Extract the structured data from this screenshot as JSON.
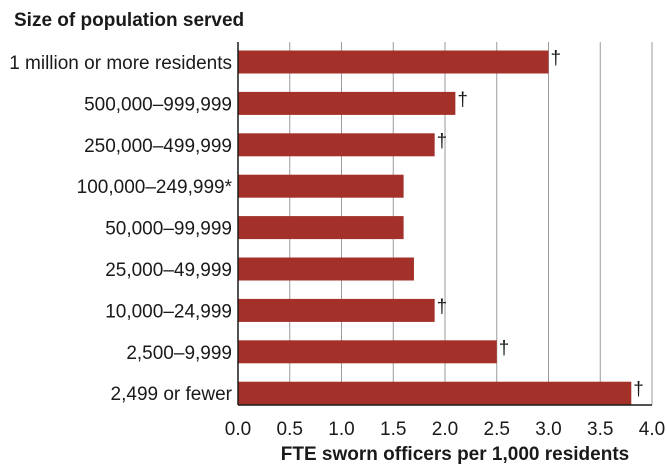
{
  "chart_data": {
    "type": "bar",
    "orientation": "horizontal",
    "ylabel": "Size of population served",
    "xlabel": "FTE sworn officers per 1,000 residents",
    "categories": [
      "1 million or more residents",
      "500,000–999,999",
      "250,000–499,999",
      "100,000–249,999*",
      "50,000–99,999",
      "25,000–49,999",
      "10,000–24,999",
      "2,500–9,999",
      "2,499 or fewer"
    ],
    "values": [
      3.0,
      2.1,
      1.9,
      1.6,
      1.6,
      1.7,
      1.9,
      2.5,
      3.8
    ],
    "markers": [
      "†",
      "†",
      "†",
      "",
      "",
      "",
      "†",
      "†",
      "†"
    ],
    "xlim": [
      0,
      4.0
    ],
    "xticks": [
      "0.0",
      "0.5",
      "1.0",
      "1.5",
      "2.0",
      "2.5",
      "3.0",
      "3.5",
      "4.0"
    ],
    "grid": "vertical",
    "bar_color": "#a4302a",
    "grid_color": "#9a9a9a"
  }
}
